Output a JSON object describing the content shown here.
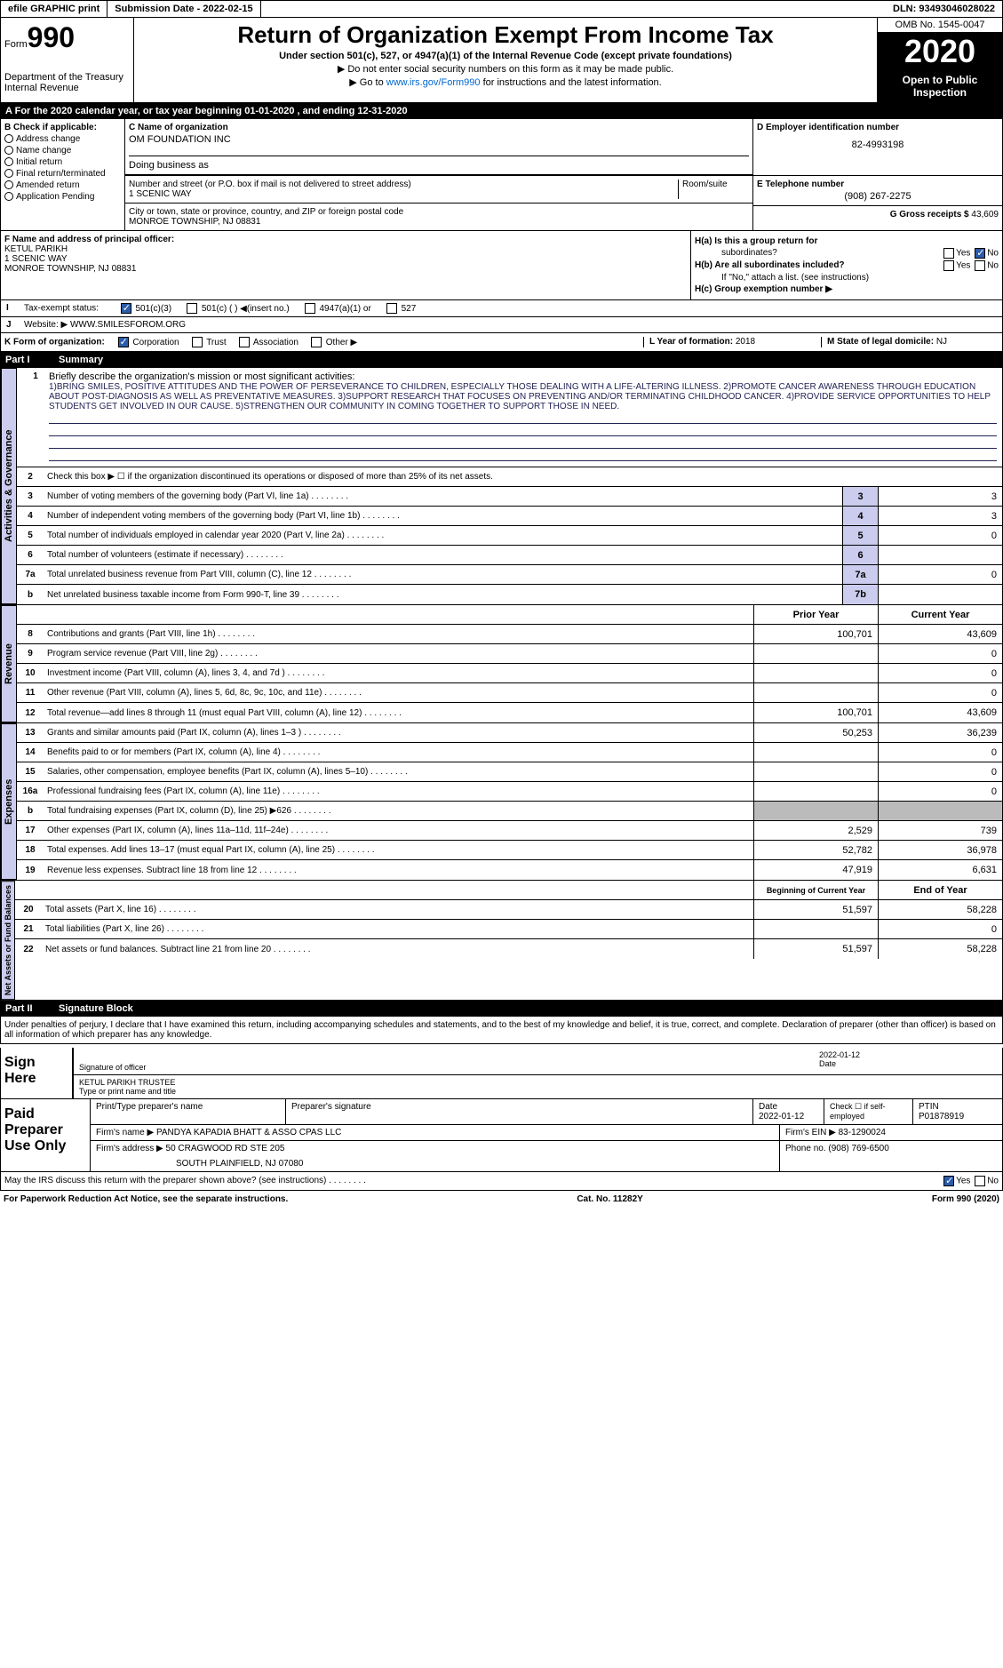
{
  "top": {
    "efile": "efile GRAPHIC print",
    "submission_label": "Submission Date - ",
    "submission_date": "2022-02-15",
    "dln_label": "DLN: ",
    "dln": "93493046028022"
  },
  "header": {
    "form_label": "Form",
    "form_num": "990",
    "dept": "Department of the Treasury",
    "irs": "Internal Revenue",
    "title": "Return of Organization Exempt From Income Tax",
    "subtitle": "Under section 501(c), 527, or 4947(a)(1) of the Internal Revenue Code (except private foundations)",
    "instr1": "▶ Do not enter social security numbers on this form as it may be made public.",
    "instr2_pre": "▶ Go to ",
    "instr2_link": "www.irs.gov/Form990",
    "instr2_post": " for instructions and the latest information.",
    "omb": "OMB No. 1545-0047",
    "year": "2020",
    "open_pub": "Open to Public Inspection"
  },
  "section_a": "For the 2020 calendar year, or tax year beginning 01-01-2020    , and ending 12-31-2020",
  "box_b": {
    "title": "B Check if applicable:",
    "items": [
      "Address change",
      "Name change",
      "Initial return",
      "Final return/terminated",
      "Amended return",
      "Application Pending"
    ]
  },
  "box_c": {
    "label": "C Name of organization",
    "name": "OM FOUNDATION INC",
    "dba": "Doing business as",
    "street_label": "Number and street (or P.O. box if mail is not delivered to street address)",
    "street": "1 SCENIC WAY",
    "room_label": "Room/suite",
    "city_label": "City or town, state or province, country, and ZIP or foreign postal code",
    "city": "MONROE TOWNSHIP, NJ  08831"
  },
  "box_d": {
    "label": "D Employer identification number",
    "value": "82-4993198"
  },
  "box_e": {
    "label": "E Telephone number",
    "value": "(908) 267-2275"
  },
  "box_g": {
    "label": "G Gross receipts $ ",
    "value": "43,609"
  },
  "box_f": {
    "label": "F  Name and address of principal officer:",
    "name": "KETUL PARIKH",
    "street": "1 SCENIC WAY",
    "city": "MONROE TOWNSHIP, NJ  08831"
  },
  "box_h": {
    "ha": "H(a)  Is this a group return for",
    "ha2": "subordinates?",
    "hb": "H(b)  Are all subordinates included?",
    "hb2": "If \"No,\" attach a list. (see instructions)",
    "hc": "H(c)  Group exemption number ▶",
    "yes": "Yes",
    "no": "No"
  },
  "box_i": {
    "label": "I",
    "text": "Tax-exempt status:",
    "opts": [
      "501(c)(3)",
      "501(c) (  ) ◀(insert no.)",
      "4947(a)(1) or",
      "527"
    ]
  },
  "box_j": {
    "label": "J",
    "text": "Website: ▶",
    "value": "WWW.SMILESFOROM.ORG"
  },
  "box_k": {
    "label": "K Form of organization:",
    "opts": [
      "Corporation",
      "Trust",
      "Association",
      "Other ▶"
    ]
  },
  "box_l": {
    "label": "L Year of formation: ",
    "value": "2018"
  },
  "box_m": {
    "label": "M State of legal domicile: ",
    "value": "NJ"
  },
  "part1": {
    "num": "Part I",
    "title": "Summary"
  },
  "mission": {
    "num": "1",
    "label": "Briefly describe the organization's mission or most significant activities:",
    "text": "1)BRING SMILES, POSITIVE ATTITUDES AND THE POWER OF PERSEVERANCE TO CHILDREN, ESPECIALLY THOSE DEALING WITH A LIFE-ALTERING ILLNESS. 2)PROMOTE CANCER AWARENESS THROUGH EDUCATION ABOUT POST-DIAGNOSIS AS WELL AS PREVENTATIVE MEASURES. 3)SUPPORT RESEARCH THAT FOCUSES ON PREVENTING AND/OR TERMINATING CHILDHOOD CANCER. 4)PROVIDE SERVICE OPPORTUNITIES TO HELP STUDENTS GET INVOLVED IN OUR CAUSE. 5)STRENGTHEN OUR COMMUNITY IN COMING TOGETHER TO SUPPORT THOSE IN NEED."
  },
  "gov_rows": [
    {
      "num": "2",
      "label": "Check this box ▶ ☐  if the organization discontinued its operations or disposed of more than 25% of its net assets.",
      "cell": "",
      "val": ""
    },
    {
      "num": "3",
      "label": "Number of voting members of the governing body (Part VI, line 1a)",
      "cell": "3",
      "val": "3"
    },
    {
      "num": "4",
      "label": "Number of independent voting members of the governing body (Part VI, line 1b)",
      "cell": "4",
      "val": "3"
    },
    {
      "num": "5",
      "label": "Total number of individuals employed in calendar year 2020 (Part V, line 2a)",
      "cell": "5",
      "val": "0"
    },
    {
      "num": "6",
      "label": "Total number of volunteers (estimate if necessary)",
      "cell": "6",
      "val": ""
    },
    {
      "num": "7a",
      "label": "Total unrelated business revenue from Part VIII, column (C), line 12",
      "cell": "7a",
      "val": "0"
    },
    {
      "num": "b",
      "label": "Net unrelated business taxable income from Form 990-T, line 39",
      "cell": "7b",
      "val": ""
    }
  ],
  "rev_header": {
    "prior": "Prior Year",
    "current": "Current Year"
  },
  "rev_rows": [
    {
      "num": "8",
      "label": "Contributions and grants (Part VIII, line 1h)",
      "prior": "100,701",
      "current": "43,609"
    },
    {
      "num": "9",
      "label": "Program service revenue (Part VIII, line 2g)",
      "prior": "",
      "current": "0"
    },
    {
      "num": "10",
      "label": "Investment income (Part VIII, column (A), lines 3, 4, and 7d )",
      "prior": "",
      "current": "0"
    },
    {
      "num": "11",
      "label": "Other revenue (Part VIII, column (A), lines 5, 6d, 8c, 9c, 10c, and 11e)",
      "prior": "",
      "current": "0"
    },
    {
      "num": "12",
      "label": "Total revenue—add lines 8 through 11 (must equal Part VIII, column (A), line 12)",
      "prior": "100,701",
      "current": "43,609"
    }
  ],
  "exp_rows": [
    {
      "num": "13",
      "label": "Grants and similar amounts paid (Part IX, column (A), lines 1–3 )",
      "prior": "50,253",
      "current": "36,239"
    },
    {
      "num": "14",
      "label": "Benefits paid to or for members (Part IX, column (A), line 4)",
      "prior": "",
      "current": "0"
    },
    {
      "num": "15",
      "label": "Salaries, other compensation, employee benefits (Part IX, column (A), lines 5–10)",
      "prior": "",
      "current": "0"
    },
    {
      "num": "16a",
      "label": "Professional fundraising fees (Part IX, column (A), line 11e)",
      "prior": "",
      "current": "0"
    },
    {
      "num": "b",
      "label": "Total fundraising expenses (Part IX, column (D), line 25) ▶626",
      "prior": "shaded",
      "current": "shaded"
    },
    {
      "num": "17",
      "label": "Other expenses (Part IX, column (A), lines 11a–11d, 11f–24e)",
      "prior": "2,529",
      "current": "739"
    },
    {
      "num": "18",
      "label": "Total expenses. Add lines 13–17 (must equal Part IX, column (A), line 25)",
      "prior": "52,782",
      "current": "36,978"
    },
    {
      "num": "19",
      "label": "Revenue less expenses. Subtract line 18 from line 12",
      "prior": "47,919",
      "current": "6,631"
    }
  ],
  "net_header": {
    "beg": "Beginning of Current Year",
    "end": "End of Year"
  },
  "net_rows": [
    {
      "num": "20",
      "label": "Total assets (Part X, line 16)",
      "prior": "51,597",
      "current": "58,228"
    },
    {
      "num": "21",
      "label": "Total liabilities (Part X, line 26)",
      "prior": "",
      "current": "0"
    },
    {
      "num": "22",
      "label": "Net assets or fund balances. Subtract line 21 from line 20",
      "prior": "51,597",
      "current": "58,228"
    }
  ],
  "labels": {
    "gov": "Activities & Governance",
    "rev": "Revenue",
    "exp": "Expenses",
    "net": "Net Assets or Fund Balances"
  },
  "part2": {
    "num": "Part II",
    "title": "Signature Block"
  },
  "sig_decl": "Under penalties of perjury, I declare that I have examined this return, including accompanying schedules and statements, and to the best of my knowledge and belief, it is true, correct, and complete. Declaration of preparer (other than officer) is based on all information of which preparer has any knowledge.",
  "sign": {
    "here": "Sign Here",
    "sig_label": "Signature of officer",
    "date_label": "Date",
    "date": "2022-01-12",
    "name": "KETUL PARIKH  TRUSTEE",
    "name_label": "Type or print name and title"
  },
  "prep": {
    "title": "Paid Preparer Use Only",
    "name_label": "Print/Type preparer's name",
    "sig_label": "Preparer's signature",
    "date_label": "Date",
    "date": "2022-01-12",
    "check_label": "Check ☐ if self-employed",
    "ptin_label": "PTIN",
    "ptin": "P01878919",
    "firm_name_label": "Firm's name    ▶ ",
    "firm_name": "PANDYA KAPADIA BHATT & ASSO CPAS LLC",
    "firm_ein_label": "Firm's EIN ▶ ",
    "firm_ein": "83-1290024",
    "firm_addr_label": "Firm's address ▶ ",
    "firm_addr1": "50 CRAGWOOD RD STE 205",
    "firm_addr2": "SOUTH PLAINFIELD, NJ  07080",
    "phone_label": "Phone no. ",
    "phone": "(908) 769-6500"
  },
  "discuss": {
    "text": "May the IRS discuss this return with the preparer shown above? (see instructions)",
    "yes": "Yes",
    "no": "No"
  },
  "footer": {
    "left": "For Paperwork Reduction Act Notice, see the separate instructions.",
    "mid": "Cat. No. 11282Y",
    "right": "Form 990 (2020)"
  }
}
